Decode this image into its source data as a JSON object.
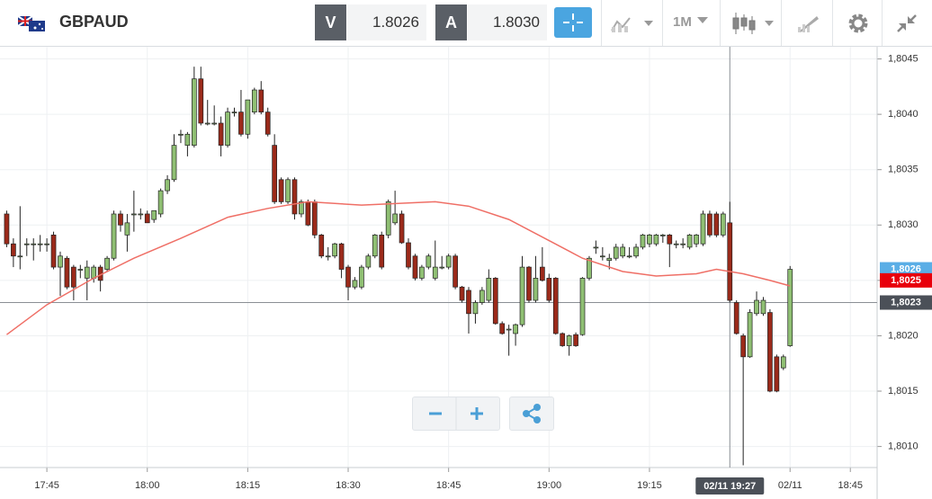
{
  "header": {
    "symbol": "GBPAUD",
    "bid_label": "V",
    "bid": "1.8026",
    "ask_label": "A",
    "ask": "1.8030",
    "timeframe": "1M"
  },
  "chart_data": {
    "type": "candlestick",
    "up_color": "#8fbf73",
    "down_color": "#9b2a1a",
    "x": [
      "17:39",
      "17:40",
      "17:41",
      "17:42",
      "17:43",
      "17:44",
      "17:45",
      "17:46",
      "17:47",
      "17:48",
      "17:49",
      "17:50",
      "17:51",
      "17:52",
      "17:53",
      "17:54",
      "17:55",
      "17:56",
      "17:57",
      "17:58",
      "17:59",
      "18:00",
      "18:01",
      "18:02",
      "18:03",
      "18:04",
      "18:05",
      "18:06",
      "18:07",
      "18:08",
      "18:09",
      "18:10",
      "18:11",
      "18:12",
      "18:13",
      "18:14",
      "18:15",
      "18:16",
      "18:17",
      "18:18",
      "18:19",
      "18:20",
      "18:21",
      "18:22",
      "18:23",
      "18:24",
      "18:25",
      "18:26",
      "18:27",
      "18:28",
      "18:29",
      "18:30",
      "18:31",
      "18:32",
      "18:33",
      "18:34",
      "18:35",
      "18:36",
      "18:37",
      "18:38",
      "18:39",
      "18:40",
      "18:41",
      "18:42",
      "18:43",
      "18:44",
      "18:45",
      "18:46",
      "18:47",
      "18:48",
      "18:49",
      "18:50",
      "18:51",
      "18:52",
      "18:53",
      "18:54",
      "18:55",
      "18:56",
      "18:57",
      "18:58",
      "18:59",
      "19:00",
      "19:01",
      "19:02",
      "19:03",
      "19:04",
      "19:05",
      "19:06",
      "19:07",
      "19:08",
      "19:09",
      "19:10",
      "19:11",
      "19:12",
      "19:13",
      "19:14",
      "19:15",
      "19:16",
      "19:17",
      "19:18",
      "19:19",
      "19:20",
      "19:21",
      "19:22",
      "19:23",
      "19:24",
      "19:25",
      "19:26",
      "19:27",
      "19:28",
      "19:29",
      "19:30",
      "19:31",
      "19:32",
      "19:33",
      "19:34",
      "19:35",
      "19:36"
    ],
    "open": [
      1.8031,
      1.80283,
      1.80272,
      1.80283,
      1.80283,
      1.80283,
      1.80283,
      1.80291,
      1.80262,
      1.8027,
      1.80262,
      1.8026,
      1.80252,
      1.80252,
      1.80262,
      1.8026,
      1.8027,
      1.8031,
      1.80291,
      1.8031,
      1.8031,
      1.8031,
      1.80305,
      1.8031,
      1.80331,
      1.80341,
      1.80382,
      1.80372,
      1.80372,
      1.80432,
      1.80392,
      1.80392,
      1.80392,
      1.80372,
      1.80402,
      1.80402,
      1.80382,
      1.80402,
      1.80422,
      1.80402,
      1.80372,
      1.80341,
      1.80321,
      1.80341,
      1.8031,
      1.80321,
      1.80321,
      1.80291,
      1.80272,
      1.80272,
      1.80283,
      1.80262,
      1.80244,
      1.80244,
      1.80262,
      1.80272,
      1.80291,
      1.80291,
      1.80302,
      1.8031,
      1.80284,
      1.80272,
      1.80252,
      1.80262,
      1.80252,
      1.80262,
      1.80262,
      1.80272,
      1.80244,
      1.80241,
      1.8022,
      1.8023,
      1.80232,
      1.80252,
      1.80211,
      1.80206,
      1.80202,
      1.8021,
      1.80262,
      1.80232,
      1.80262,
      1.80252,
      1.80252,
      1.80202,
      1.80191,
      1.80201,
      1.80201,
      1.80252,
      1.8028,
      1.80272,
      1.80268,
      1.8027,
      1.80272,
      1.80272,
      1.80272,
      1.8028,
      1.80283,
      1.80283,
      1.80291,
      1.80291,
      1.80283,
      1.80283,
      1.8028,
      1.80283,
      1.80283,
      1.8031,
      1.8031,
      1.80291,
      1.80302,
      1.8023,
      1.802,
      1.80181,
      1.8022,
      1.8022,
      1.80221,
      1.80181,
      1.80171,
      1.80191
    ],
    "high": [
      1.80313,
      1.80288,
      1.80317,
      1.80288,
      1.80288,
      1.80291,
      1.80288,
      1.80294,
      1.80276,
      1.80272,
      1.80264,
      1.80264,
      1.80268,
      1.80264,
      1.80264,
      1.80272,
      1.80313,
      1.80313,
      1.8031,
      1.80331,
      1.80315,
      1.80313,
      1.80313,
      1.80333,
      1.80345,
      1.80382,
      1.80386,
      1.80384,
      1.80443,
      1.80443,
      1.80413,
      1.80408,
      1.80398,
      1.80406,
      1.80406,
      1.80422,
      1.80413,
      1.80424,
      1.8043,
      1.80406,
      1.80382,
      1.80343,
      1.80343,
      1.80343,
      1.80323,
      1.80323,
      1.80323,
      1.80292,
      1.8028,
      1.80284,
      1.80284,
      1.80264,
      1.80253,
      1.80264,
      1.80274,
      1.80292,
      1.80294,
      1.80323,
      1.80331,
      1.80313,
      1.80288,
      1.80274,
      1.80264,
      1.80274,
      1.80286,
      1.80272,
      1.80274,
      1.80274,
      1.80245,
      1.80244,
      1.80232,
      1.80244,
      1.8026,
      1.80253,
      1.80213,
      1.8021,
      1.80211,
      1.80272,
      1.80263,
      1.80272,
      1.8028,
      1.80256,
      1.80253,
      1.80203,
      1.80201,
      1.80203,
      1.80253,
      1.80272,
      1.80286,
      1.8028,
      1.80274,
      1.80283,
      1.80283,
      1.8028,
      1.80283,
      1.80292,
      1.80292,
      1.80292,
      1.80292,
      1.80292,
      1.80286,
      1.80288,
      1.80292,
      1.80292,
      1.80313,
      1.80313,
      1.80312,
      1.80312,
      1.80321,
      1.80232,
      1.80202,
      1.80224,
      1.8024,
      1.80235,
      1.80224,
      1.80183,
      1.80183,
      1.80263
    ],
    "low": [
      1.8028,
      1.80262,
      1.8026,
      1.80272,
      1.80268,
      1.80276,
      1.80276,
      1.8026,
      1.80236,
      1.80242,
      1.80232,
      1.80252,
      1.80232,
      1.80248,
      1.8024,
      1.80258,
      1.80268,
      1.80294,
      1.80276,
      1.80294,
      1.80305,
      1.80302,
      1.80302,
      1.80307,
      1.80328,
      1.80339,
      1.80374,
      1.80362,
      1.8037,
      1.8039,
      1.8039,
      1.8039,
      1.80362,
      1.8037,
      1.80398,
      1.8038,
      1.80378,
      1.804,
      1.804,
      1.8038,
      1.80319,
      1.80319,
      1.80319,
      1.80305,
      1.80307,
      1.80299,
      1.80288,
      1.8027,
      1.80268,
      1.8027,
      1.80252,
      1.80232,
      1.80242,
      1.80242,
      1.8026,
      1.8027,
      1.8026,
      1.80288,
      1.803,
      1.80283,
      1.8026,
      1.8025,
      1.8025,
      1.8026,
      1.8025,
      1.8026,
      1.8026,
      1.80242,
      1.8023,
      1.80202,
      1.80211,
      1.80228,
      1.8023,
      1.8021,
      1.80201,
      1.80182,
      1.80191,
      1.80208,
      1.8023,
      1.8023,
      1.80249,
      1.8023,
      1.80201,
      1.8019,
      1.80182,
      1.8019,
      1.802,
      1.8025,
      1.80274,
      1.80268,
      1.8026,
      1.80268,
      1.8027,
      1.8027,
      1.8027,
      1.80278,
      1.8028,
      1.80281,
      1.80284,
      1.80262,
      1.80279,
      1.80279,
      1.80278,
      1.8028,
      1.80281,
      1.80289,
      1.80289,
      1.80289,
      1.8023,
      1.80201,
      1.80083,
      1.8018,
      1.80218,
      1.80218,
      1.80149,
      1.80149,
      1.80169,
      1.8019
    ],
    "close": [
      1.80283,
      1.80272,
      1.80272,
      1.80283,
      1.80283,
      1.80283,
      1.80283,
      1.80262,
      1.80272,
      1.80244,
      1.80244,
      1.8026,
      1.80262,
      1.80262,
      1.8025,
      1.8027,
      1.8031,
      1.803,
      1.80302,
      1.8031,
      1.8031,
      1.80302,
      1.80313,
      1.80331,
      1.80341,
      1.80372,
      1.80382,
      1.80382,
      1.80432,
      1.80392,
      1.80392,
      1.80392,
      1.80372,
      1.80402,
      1.80402,
      1.80382,
      1.80413,
      1.80422,
      1.80402,
      1.80382,
      1.80321,
      1.80321,
      1.80341,
      1.8031,
      1.80321,
      1.803,
      1.80291,
      1.80272,
      1.80272,
      1.80283,
      1.8026,
      1.80244,
      1.8025,
      1.80262,
      1.80272,
      1.80291,
      1.80262,
      1.80321,
      1.8031,
      1.80284,
      1.80262,
      1.80252,
      1.80262,
      1.80272,
      1.80262,
      1.80262,
      1.80272,
      1.80244,
      1.80232,
      1.8022,
      1.8023,
      1.80241,
      1.80252,
      1.80211,
      1.80202,
      1.80206,
      1.8021,
      1.80262,
      1.80232,
      1.80252,
      1.8025,
      1.80232,
      1.80202,
      1.80191,
      1.802,
      1.80191,
      1.80252,
      1.8027,
      1.8028,
      1.80272,
      1.8027,
      1.8028,
      1.8028,
      1.80272,
      1.8028,
      1.80291,
      1.80291,
      1.80291,
      1.80291,
      1.80283,
      1.80283,
      1.80283,
      1.80291,
      1.80291,
      1.8031,
      1.80291,
      1.80291,
      1.8031,
      1.80232,
      1.80202,
      1.80181,
      1.80221,
      1.80232,
      1.80232,
      1.8015,
      1.8015,
      1.80181,
      1.8026
    ],
    "moving_average": {
      "color": "#ef6f66",
      "x": [
        "17:39",
        "17:45",
        "17:52",
        "17:58",
        "18:05",
        "18:12",
        "18:18",
        "18:24",
        "18:32",
        "18:43",
        "18:48",
        "18:54",
        "19:00",
        "19:05",
        "19:11",
        "19:16",
        "19:22",
        "19:25",
        "19:29",
        "19:33",
        "19:36"
      ],
      "values": [
        1.80201,
        1.80228,
        1.80252,
        1.8027,
        1.80288,
        1.80307,
        1.80315,
        1.80321,
        1.80318,
        1.80321,
        1.80317,
        1.80305,
        1.80286,
        1.8027,
        1.80258,
        1.80254,
        1.80256,
        1.8026,
        1.80256,
        1.8025,
        1.80245
      ]
    },
    "ylim": [
      1.80081,
      1.80461
    ],
    "yticks": [
      {
        "value": 1.801,
        "label": "1,8010"
      },
      {
        "value": 1.8015,
        "label": "1,8015"
      },
      {
        "value": 1.802,
        "label": "1,8020"
      },
      {
        "value": 1.8025,
        "label": "1,8025"
      },
      {
        "value": 1.803,
        "label": "1,8030"
      },
      {
        "value": 1.8035,
        "label": "1,8035"
      },
      {
        "value": 1.804,
        "label": "1,8040"
      },
      {
        "value": 1.8045,
        "label": "1,8045"
      }
    ],
    "xlim": [
      "17:38",
      "19:49"
    ],
    "xticks": [
      "17:45",
      "18:00",
      "18:15",
      "18:30",
      "18:45",
      "19:00",
      "19:15",
      {
        "value": "19:36",
        "label": "02/11"
      },
      {
        "value": "19:45",
        "label": "18:45"
      }
    ],
    "grid": true,
    "price_markers": [
      {
        "value": 1.8026,
        "label": "1,8026",
        "color": "#5aaee6"
      },
      {
        "value": 1.8025,
        "label": "1,8025",
        "color": "#e8000b"
      },
      {
        "value": 1.8023,
        "label": "1,8023",
        "color": "#4b5058",
        "line": true
      }
    ],
    "crosshair": {
      "x": "19:27",
      "label": "02/11 19:27"
    }
  }
}
